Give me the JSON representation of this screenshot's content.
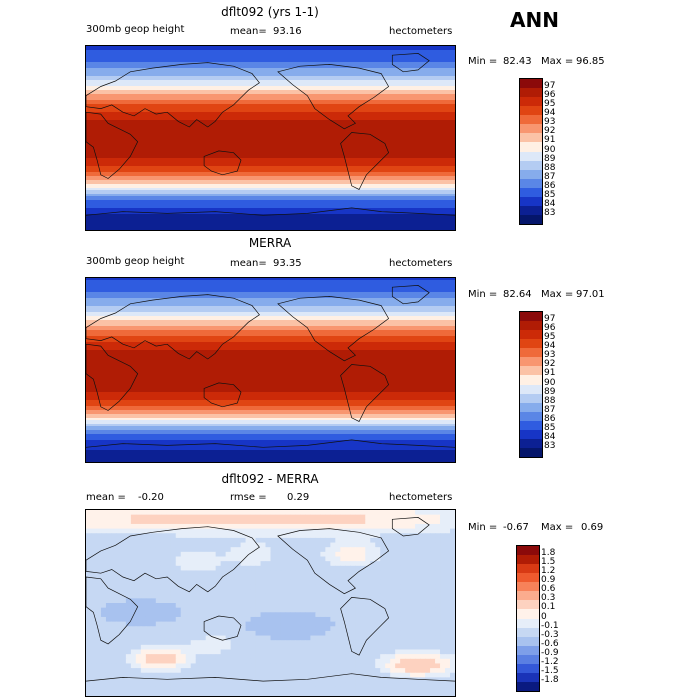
{
  "season": "ANN",
  "panels": [
    {
      "title": "dflt092 (yrs 1-1)",
      "left_label": "300mb geop height",
      "mean_label": "mean=",
      "mean_value": "93.16",
      "units": "hectometers",
      "min_label": "Min =",
      "min_value": "82.43",
      "max_label": "Max =",
      "max_value": "96.85",
      "colorbar": {
        "labels": [
          "97",
          "96",
          "95",
          "94",
          "93",
          "92",
          "91",
          "90",
          "89",
          "88",
          "87",
          "86",
          "85",
          "84",
          "83"
        ],
        "colors": [
          "#8b0a0a",
          "#b01c05",
          "#cc2a08",
          "#e04513",
          "#ef6a3a",
          "#f89670",
          "#fbc2a6",
          "#fff0e4",
          "#dde8f8",
          "#b4ccf2",
          "#86acec",
          "#5a86e6",
          "#2f5ce0",
          "#1735c6",
          "#0c2093",
          "#05166b"
        ]
      },
      "field": {
        "lat": [
          90,
          75,
          60,
          45,
          30,
          15,
          0,
          -15,
          -30,
          -45,
          -60,
          -75,
          -90
        ],
        "values": [
          84.6,
          86.0,
          88.2,
          91.5,
          94.6,
          96.2,
          96.7,
          96.4,
          94.8,
          91.3,
          86.2,
          84.0,
          83.4
        ]
      }
    },
    {
      "title": "MERRA",
      "left_label": "300mb geop height",
      "mean_label": "mean=",
      "mean_value": "93.35",
      "units": "hectometers",
      "min_label": "Min =",
      "min_value": "82.64",
      "max_label": "Max =",
      "max_value": "97.01",
      "colorbar": {
        "labels": [
          "97",
          "96",
          "95",
          "94",
          "93",
          "92",
          "91",
          "90",
          "89",
          "88",
          "87",
          "86",
          "85",
          "84",
          "83"
        ],
        "colors": [
          "#8b0a0a",
          "#b01c05",
          "#cc2a08",
          "#e04513",
          "#ef6a3a",
          "#f89670",
          "#fbc2a6",
          "#fff0e4",
          "#dde8f8",
          "#b4ccf2",
          "#86acec",
          "#5a86e6",
          "#2f5ce0",
          "#1735c6",
          "#0c2093",
          "#05166b"
        ]
      },
      "field": {
        "lat": [
          90,
          75,
          60,
          45,
          30,
          15,
          0,
          -15,
          -30,
          -45,
          -60,
          -75,
          -90
        ],
        "values": [
          84.8,
          86.2,
          88.4,
          91.7,
          94.8,
          96.4,
          96.9,
          96.6,
          95.0,
          91.5,
          86.4,
          84.1,
          83.6
        ]
      }
    },
    {
      "title": "dflt092 - MERRA",
      "left_label": "mean =",
      "left_value": "-0.20",
      "mid_label": "rmse =",
      "mid_value": "0.29",
      "units": "hectometers",
      "min_label": "Min =",
      "min_value": "-0.67",
      "max_label": "Max =",
      "max_value": "0.69",
      "colorbar": {
        "labels": [
          "1.8",
          "1.5",
          "1.2",
          "0.9",
          "0.6",
          "0.3",
          "0.1",
          "0",
          "-0.1",
          "-0.3",
          "-0.6",
          "-0.9",
          "-1.2",
          "-1.5",
          "-1.8"
        ],
        "colors": [
          "#8b0a0a",
          "#b01c05",
          "#d83a14",
          "#ee5a2e",
          "#f7825a",
          "#fbac8e",
          "#fdd2c0",
          "#fff2ea",
          "#e6eef9",
          "#c6d8f3",
          "#a8c2ef",
          "#7e9fe9",
          "#5a7fe2",
          "#3458d8",
          "#1a33b8",
          "#0a1a80"
        ]
      },
      "field": {
        "lat": [
          90,
          75,
          60,
          45,
          30,
          15,
          0,
          -15,
          -30,
          -45,
          -60,
          -75,
          -90
        ],
        "values": [
          0.2,
          0.05,
          -0.1,
          -0.15,
          -0.1,
          -0.2,
          -0.25,
          -0.2,
          -0.15,
          -0.05,
          -0.2,
          -0.3,
          -0.25
        ]
      }
    }
  ],
  "chart_data": [
    {
      "type": "heatmap",
      "title": "dflt092 (yrs 1-1)",
      "variable": "300mb geop height",
      "units": "hectometers",
      "mean": 93.16,
      "min": 82.43,
      "max": 96.85,
      "colorbar_levels": [
        83,
        84,
        85,
        86,
        87,
        88,
        89,
        90,
        91,
        92,
        93,
        94,
        95,
        96,
        97
      ],
      "zonal_profile": {
        "lat": [
          90,
          75,
          60,
          45,
          30,
          15,
          0,
          -15,
          -30,
          -45,
          -60,
          -75,
          -90
        ],
        "values": [
          84.6,
          86.0,
          88.2,
          91.5,
          94.6,
          96.2,
          96.7,
          96.4,
          94.8,
          91.3,
          86.2,
          84.0,
          83.4
        ]
      }
    },
    {
      "type": "heatmap",
      "title": "MERRA",
      "variable": "300mb geop height",
      "units": "hectometers",
      "mean": 93.35,
      "min": 82.64,
      "max": 97.01,
      "colorbar_levels": [
        83,
        84,
        85,
        86,
        87,
        88,
        89,
        90,
        91,
        92,
        93,
        94,
        95,
        96,
        97
      ],
      "zonal_profile": {
        "lat": [
          90,
          75,
          60,
          45,
          30,
          15,
          0,
          -15,
          -30,
          -45,
          -60,
          -75,
          -90
        ],
        "values": [
          84.8,
          86.2,
          88.4,
          91.7,
          94.8,
          96.4,
          96.9,
          96.6,
          95.0,
          91.5,
          86.4,
          84.1,
          83.6
        ]
      }
    },
    {
      "type": "heatmap",
      "title": "dflt092 - MERRA",
      "units": "hectometers",
      "mean": -0.2,
      "rmse": 0.29,
      "min": -0.67,
      "max": 0.69,
      "colorbar_levels": [
        -1.8,
        -1.5,
        -1.2,
        -0.9,
        -0.6,
        -0.3,
        -0.1,
        0,
        0.1,
        0.3,
        0.6,
        0.9,
        1.2,
        1.5,
        1.8
      ]
    }
  ]
}
